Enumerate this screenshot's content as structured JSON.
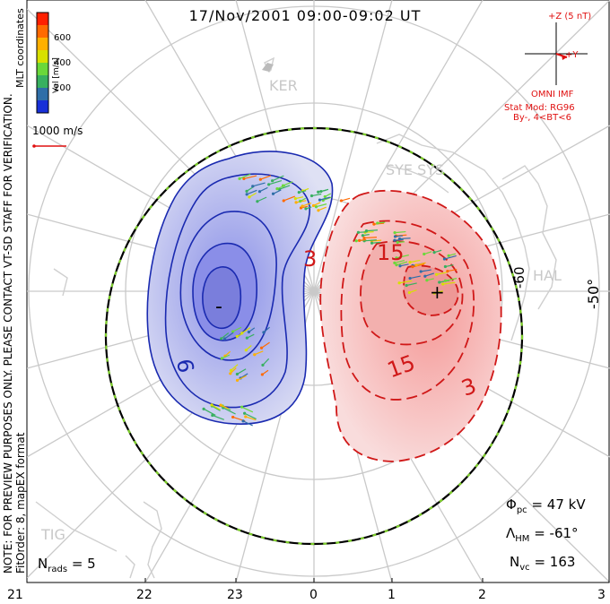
{
  "title": "17/Nov/2001 09:00-09:02 UT",
  "coordinates_label": "MLT coordinates",
  "velocity_scale": {
    "unit_label": "Vel [m/s]",
    "ticks": [
      "600",
      "400",
      "200"
    ],
    "colors": [
      "#ff2000",
      "#ff6a00",
      "#ffb000",
      "#d8e000",
      "#6ad83a",
      "#38b060",
      "#2f6ea8",
      "#1830d8"
    ]
  },
  "reference_vector": {
    "label": "1000 m/s",
    "color": "#e01010"
  },
  "preview_notice": "NOTE: FOR PREVIEW PURPOSES ONLY. PLEASE CONTACT VT-SD STAFF FOR VERIFICATION.",
  "fit_order_note": "FitOrder: 8, mapEX format",
  "imf": {
    "bz_label": "+Z (5 nT)",
    "by_label": "+Y",
    "source": "OMNI IMF",
    "stat_mod": "Stat Mod: RG96",
    "condition": "By-, 4<BT<6"
  },
  "stations": [
    "KER",
    "SYE SYS",
    "HAL",
    "TIG"
  ],
  "latitude_labels": [
    "-50°",
    "-60"
  ],
  "contours": {
    "negative_labels": [
      "-",
      "9"
    ],
    "positive_labels": [
      "3",
      "15",
      "+",
      "15",
      "3"
    ]
  },
  "stats": {
    "nrads_symbol": "N",
    "nrads_sub": "rads",
    "nrads_value": "= 5",
    "phi_symbol": "Φ",
    "phi_sub": "pc",
    "phi_value": "= 47 kV",
    "lambda_symbol": "Λ",
    "lambda_sub": "HM",
    "lambda_value": "= -61°",
    "nvc_symbol": "N",
    "nvc_sub": "vc",
    "nvc_value": "= 163"
  },
  "mlt_axis": [
    "21",
    "22",
    "23",
    "0",
    "1",
    "2",
    "3"
  ],
  "colors": {
    "negative_cell": "#1a2ab0",
    "positive_cell": "#d01818",
    "heppner_boundary": "#000000"
  }
}
